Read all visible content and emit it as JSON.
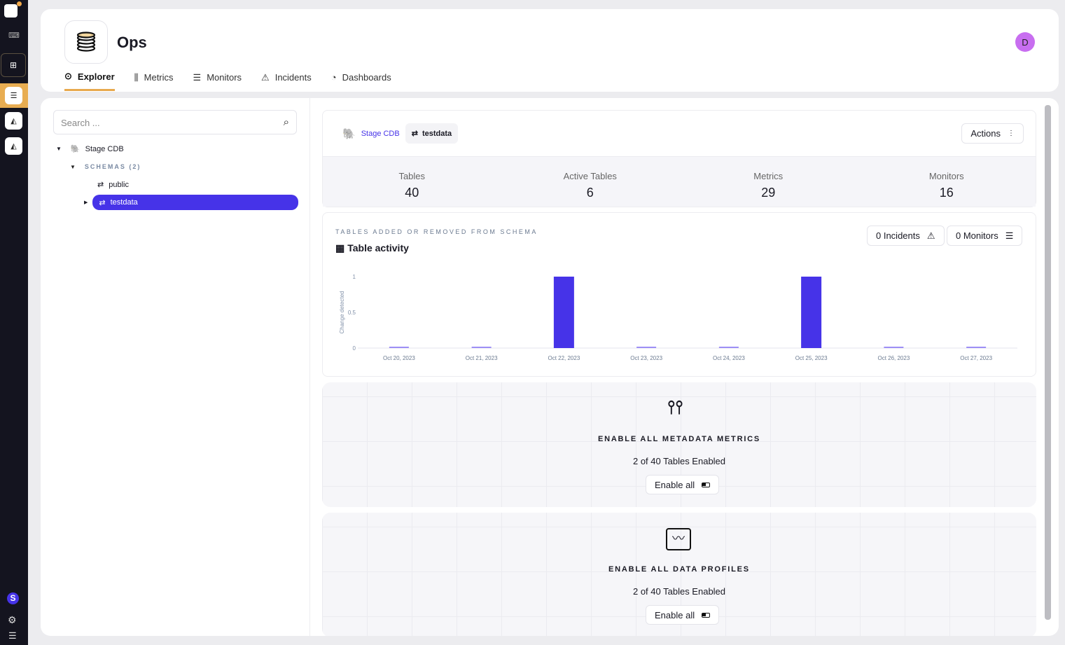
{
  "app": {
    "title": "Ops",
    "avatar_initial": "D",
    "rail_badge": "S"
  },
  "tabs": [
    {
      "label": "Explorer"
    },
    {
      "label": "Metrics"
    },
    {
      "label": "Monitors"
    },
    {
      "label": "Incidents"
    },
    {
      "label": "Dashboards"
    }
  ],
  "sidebar": {
    "search_placeholder": "Search ...",
    "tree": {
      "source": "Stage CDB",
      "schemas_label": "SCHEMAS (2)",
      "schemas": [
        "public",
        "testdata"
      ]
    }
  },
  "header": {
    "breadcrumb_source": "Stage CDB",
    "breadcrumb_schema": "testdata",
    "actions_label": "Actions"
  },
  "stats": [
    {
      "label": "Tables",
      "value": "40"
    },
    {
      "label": "Active Tables",
      "value": "6"
    },
    {
      "label": "Metrics",
      "value": "29"
    },
    {
      "label": "Monitors",
      "value": "16"
    }
  ],
  "activity": {
    "kicker": "TABLES ADDED OR REMOVED FROM SCHEMA",
    "title": "Table activity",
    "incidents_label": "0 Incidents",
    "monitors_label": "0 Monitors"
  },
  "chart_data": {
    "type": "bar",
    "categories": [
      "Oct 20, 2023",
      "Oct 21, 2023",
      "Oct 22, 2023",
      "Oct 23, 2023",
      "Oct 24, 2023",
      "Oct 25, 2023",
      "Oct 26, 2023",
      "Oct 27, 2023"
    ],
    "values": [
      0,
      0,
      1,
      0,
      0,
      1,
      0,
      0
    ],
    "ylabel": "Change detected",
    "ylim": [
      0,
      1
    ],
    "yticks": [
      "0",
      "0.5",
      "1"
    ],
    "color": "#4633e8"
  },
  "enable": [
    {
      "title": "ENABLE ALL METADATA METRICS",
      "status": "2 of 40 Tables Enabled",
      "button": "Enable all"
    },
    {
      "title": "ENABLE ALL DATA PROFILES",
      "status": "2 of 40 Tables Enabled",
      "button": "Enable all"
    }
  ]
}
